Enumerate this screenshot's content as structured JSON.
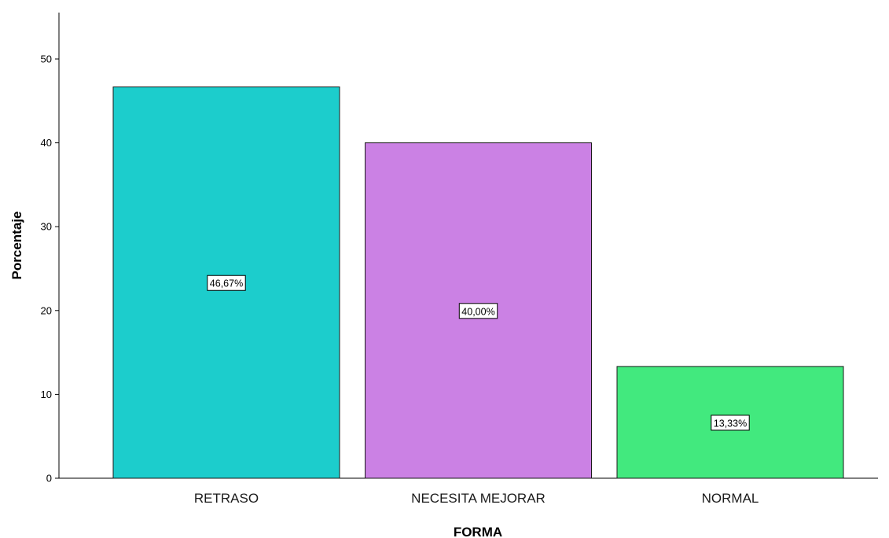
{
  "chart_data": {
    "type": "bar",
    "categories": [
      "RETRASO",
      "NECESITA MEJORAR",
      "NORMAL"
    ],
    "values": [
      46.67,
      40.0,
      13.33
    ],
    "data_labels": [
      "46,67%",
      "40,00%",
      "13,33%"
    ],
    "colors": [
      "#1ccdcc",
      "#cb81e4",
      "#42e97e"
    ],
    "xlabel": "FORMA",
    "ylabel": "Porcentaje",
    "ylim": [
      0,
      55
    ],
    "yticks": [
      0,
      10,
      20,
      30,
      40,
      50
    ],
    "grid": false,
    "legend": "none"
  }
}
